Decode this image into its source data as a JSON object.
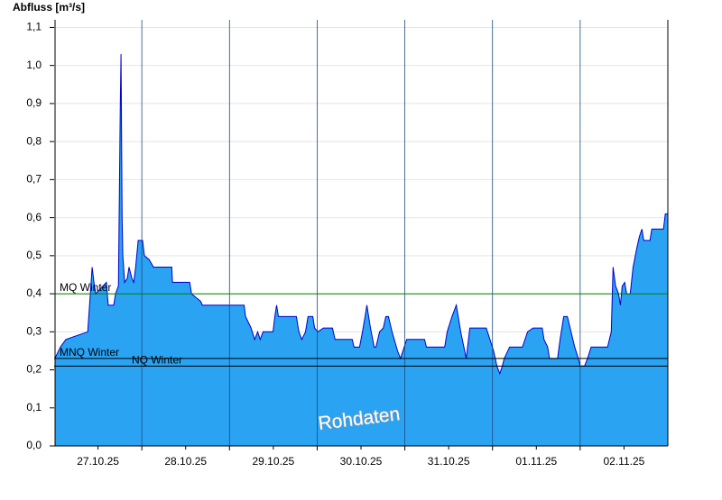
{
  "chart_data": {
    "type": "area",
    "y_label": "Abfluss [m³/s]",
    "watermark": "Rohdaten",
    "xlim": [
      0,
      168
    ],
    "ylim": [
      0,
      1.12
    ],
    "xticks": [
      {
        "value": 12,
        "label": "27.10.25"
      },
      {
        "value": 24,
        "label": null
      },
      {
        "value": 36,
        "label": "28.10.25"
      },
      {
        "value": 48,
        "label": null
      },
      {
        "value": 60,
        "label": "29.10.25"
      },
      {
        "value": 72,
        "label": null
      },
      {
        "value": 84,
        "label": "30.10.25"
      },
      {
        "value": 96,
        "label": null
      },
      {
        "value": 108,
        "label": "31.10.25"
      },
      {
        "value": 120,
        "label": null
      },
      {
        "value": 132,
        "label": "01.11.25"
      },
      {
        "value": 144,
        "label": null
      },
      {
        "value": 156,
        "label": "02.11.25"
      }
    ],
    "yticks": [
      {
        "value": 0,
        "label": "0,0"
      },
      {
        "value": 0.1,
        "label": "0,1"
      },
      {
        "value": 0.2,
        "label": "0,2"
      },
      {
        "value": 0.3,
        "label": "0,3"
      },
      {
        "value": 0.4,
        "label": "0,4"
      },
      {
        "value": 0.5,
        "label": "0,5"
      },
      {
        "value": 0.6,
        "label": "0,6"
      },
      {
        "value": 0.7,
        "label": "0,7"
      },
      {
        "value": 0.8,
        "label": "0,8"
      },
      {
        "value": 0.9,
        "label": "0,9"
      },
      {
        "value": 1.0,
        "label": "1,0"
      },
      {
        "value": 1.1,
        "label": "1,1"
      }
    ],
    "grid": true,
    "fill_color": "#2aa3f3",
    "line_color": "#0000cc",
    "reference_lines": [
      {
        "label": "MQ Winter",
        "value": 0.4,
        "color": "#008000"
      },
      {
        "label": "MNQ Winter",
        "value": 0.23,
        "color": "#000000"
      },
      {
        "label": "NQ Winter",
        "value": 0.21,
        "color": "#000000"
      }
    ],
    "x": [
      0.2,
      1.7,
      3.2,
      9.2,
      9.9,
      10.4,
      10.9,
      11.4,
      14.3,
      14.8,
      16.3,
      16.8,
      17.6,
      17.8,
      18.1,
      18.3,
      18.6,
      18.8,
      19.3,
      20.0,
      20.5,
      21.3,
      21.8,
      22.3,
      23.0,
      24.2,
      24.7,
      26.0,
      27.2,
      32.2,
      32.4,
      37.1,
      37.6,
      40.1,
      40.6,
      52.0,
      52.4,
      53.9,
      54.9,
      55.7,
      56.4,
      57.2,
      59.9,
      60.4,
      60.9,
      61.4,
      66.3,
      67.0,
      67.8,
      68.8,
      69.5,
      70.8,
      71.3,
      72.2,
      73.7,
      76.2,
      76.9,
      81.6,
      82.1,
      83.6,
      84.4,
      85.1,
      85.6,
      86.1,
      86.6,
      87.6,
      88.1,
      89.1,
      90.1,
      90.8,
      91.5,
      92.5,
      94.0,
      94.8,
      95.5,
      96.5,
      101.4,
      101.9,
      106.9,
      107.6,
      108.9,
      110.1,
      111.3,
      112.8,
      113.8,
      118.3,
      119.3,
      120.3,
      121.2,
      122.0,
      122.7,
      123.2,
      124.7,
      128.2,
      128.9,
      129.6,
      131.1,
      133.6,
      134.1,
      135.1,
      135.6,
      137.8,
      138.5,
      139.5,
      140.5,
      141.5,
      142.5,
      143.5,
      144.0,
      145.2,
      146.0,
      147.0,
      151.5,
      152.5,
      153.0,
      153.7,
      154.5,
      155.0,
      155.5,
      156.2,
      156.7,
      157.7,
      158.5,
      159.5,
      160.2,
      160.9,
      161.4,
      163.1,
      163.6,
      166.8,
      167.3,
      168
    ],
    "values": [
      0.23,
      0.26,
      0.28,
      0.3,
      0.4,
      0.47,
      0.43,
      0.4,
      0.43,
      0.37,
      0.37,
      0.4,
      0.42,
      0.6,
      0.9,
      1.03,
      0.6,
      0.5,
      0.43,
      0.44,
      0.47,
      0.44,
      0.43,
      0.47,
      0.54,
      0.54,
      0.5,
      0.49,
      0.47,
      0.47,
      0.43,
      0.43,
      0.4,
      0.38,
      0.37,
      0.37,
      0.34,
      0.31,
      0.28,
      0.3,
      0.28,
      0.3,
      0.3,
      0.34,
      0.37,
      0.34,
      0.34,
      0.3,
      0.28,
      0.3,
      0.34,
      0.34,
      0.31,
      0.3,
      0.31,
      0.31,
      0.28,
      0.28,
      0.26,
      0.26,
      0.3,
      0.34,
      0.37,
      0.34,
      0.31,
      0.26,
      0.26,
      0.3,
      0.31,
      0.34,
      0.34,
      0.3,
      0.25,
      0.23,
      0.25,
      0.28,
      0.28,
      0.26,
      0.26,
      0.3,
      0.34,
      0.37,
      0.3,
      0.23,
      0.31,
      0.31,
      0.28,
      0.25,
      0.21,
      0.19,
      0.21,
      0.23,
      0.26,
      0.26,
      0.28,
      0.3,
      0.31,
      0.31,
      0.28,
      0.26,
      0.23,
      0.23,
      0.28,
      0.34,
      0.34,
      0.3,
      0.26,
      0.23,
      0.21,
      0.21,
      0.23,
      0.26,
      0.26,
      0.3,
      0.47,
      0.42,
      0.4,
      0.37,
      0.42,
      0.43,
      0.4,
      0.4,
      0.47,
      0.52,
      0.55,
      0.57,
      0.54,
      0.54,
      0.57,
      0.57,
      0.61,
      0.61
    ]
  }
}
